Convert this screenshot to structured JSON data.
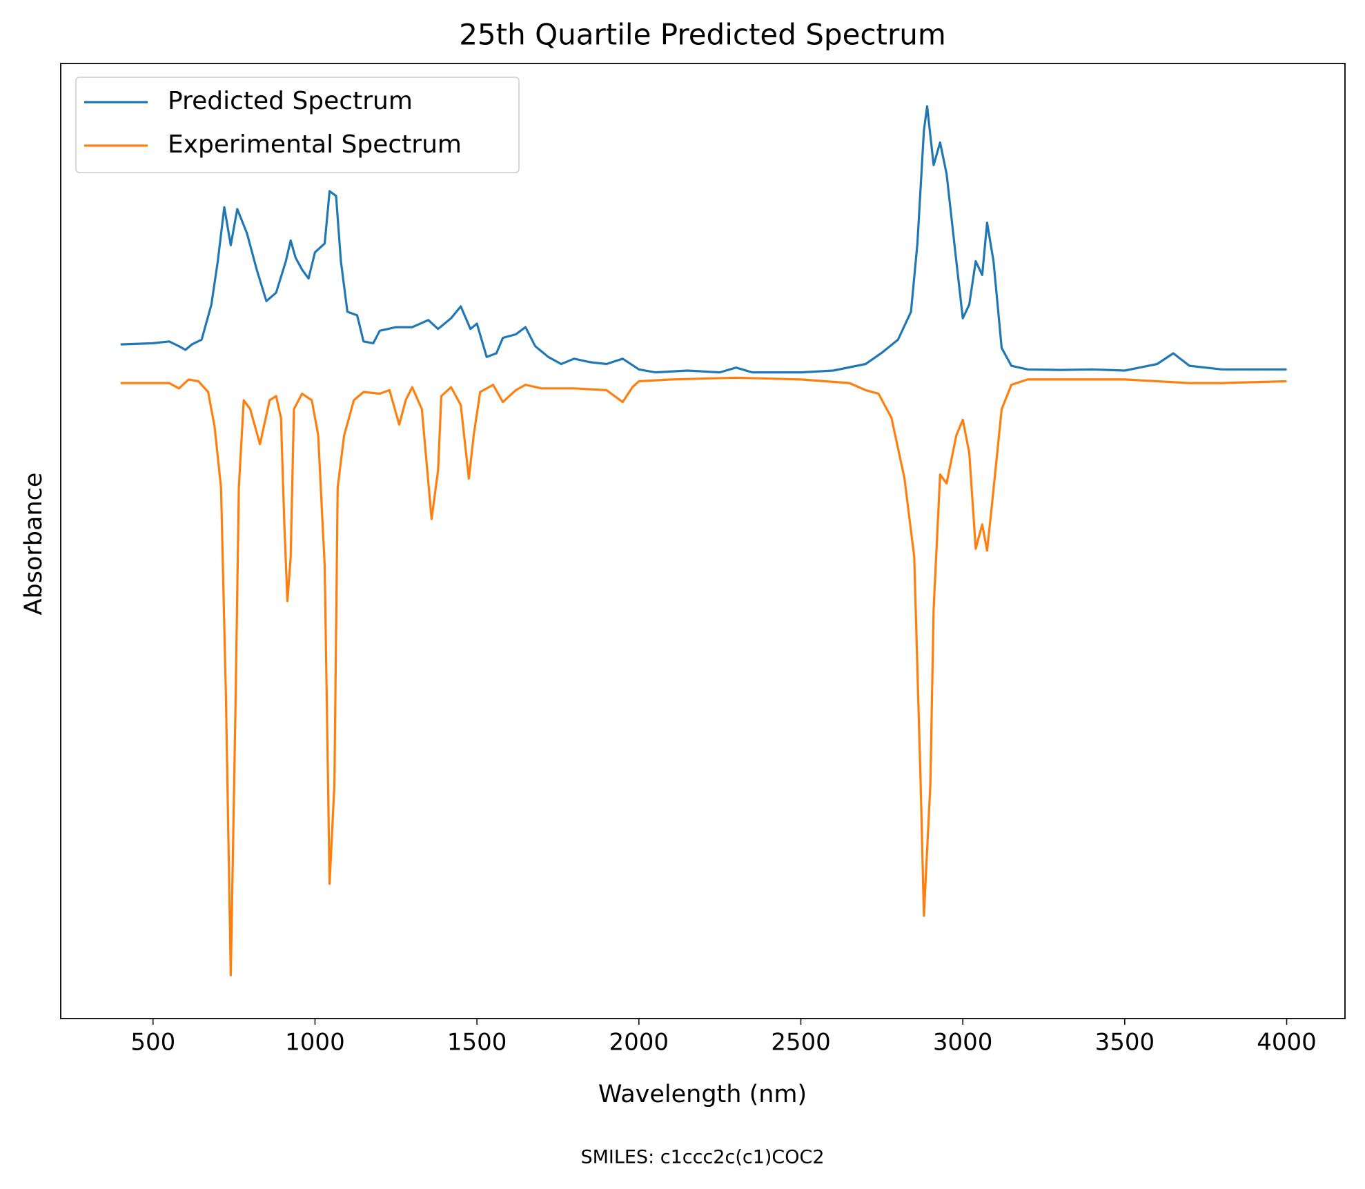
{
  "chart_data": {
    "type": "line",
    "title": "25th Quartile Predicted Spectrum",
    "x_label": "Wavelength (nm)",
    "y_label": "Absorbance",
    "footnote": "SMILES: c1ccc2c(c1)COC2",
    "xlim": [
      215,
      4180
    ],
    "xticks": [
      500,
      1000,
      1500,
      2000,
      2500,
      3000,
      3500,
      4000
    ],
    "ylim": [
      -1.07,
      0.538
    ],
    "grid": false,
    "legend": "upper-left",
    "series": [
      {
        "name": "Predicted Spectrum",
        "color": "#1f77b4",
        "x": [
          400,
          500,
          550,
          580,
          600,
          620,
          650,
          680,
          700,
          720,
          740,
          760,
          790,
          820,
          850,
          880,
          910,
          925,
          940,
          960,
          980,
          1000,
          1030,
          1045,
          1065,
          1080,
          1100,
          1130,
          1150,
          1180,
          1200,
          1250,
          1300,
          1350,
          1380,
          1420,
          1450,
          1480,
          1500,
          1530,
          1560,
          1580,
          1620,
          1650,
          1680,
          1720,
          1760,
          1800,
          1850,
          1900,
          1950,
          2000,
          2050,
          2150,
          2250,
          2300,
          2350,
          2500,
          2600,
          2700,
          2750,
          2800,
          2840,
          2860,
          2880,
          2890,
          2910,
          2930,
          2950,
          2980,
          3000,
          3020,
          3040,
          3060,
          3075,
          3095,
          3120,
          3150,
          3200,
          3300,
          3400,
          3500,
          3600,
          3650,
          3700,
          3800,
          4000
        ],
        "values": [
          0.065,
          0.067,
          0.07,
          0.062,
          0.056,
          0.065,
          0.073,
          0.132,
          0.205,
          0.296,
          0.232,
          0.293,
          0.252,
          0.191,
          0.138,
          0.152,
          0.205,
          0.24,
          0.211,
          0.191,
          0.176,
          0.22,
          0.235,
          0.323,
          0.315,
          0.205,
          0.12,
          0.114,
          0.07,
          0.067,
          0.088,
          0.094,
          0.094,
          0.106,
          0.091,
          0.109,
          0.129,
          0.091,
          0.1,
          0.044,
          0.05,
          0.076,
          0.082,
          0.094,
          0.062,
          0.044,
          0.032,
          0.041,
          0.035,
          0.032,
          0.041,
          0.023,
          0.018,
          0.021,
          0.018,
          0.026,
          0.018,
          0.018,
          0.021,
          0.032,
          0.051,
          0.073,
          0.12,
          0.235,
          0.425,
          0.466,
          0.367,
          0.405,
          0.352,
          0.205,
          0.109,
          0.132,
          0.205,
          0.182,
          0.27,
          0.205,
          0.059,
          0.029,
          0.023,
          0.022,
          0.023,
          0.021,
          0.032,
          0.05,
          0.029,
          0.023,
          0.023
        ]
      },
      {
        "name": "Experimental Spectrum",
        "color": "#ff7f0e",
        "x": [
          400,
          550,
          580,
          610,
          640,
          670,
          690,
          710,
          725,
          740,
          755,
          765,
          780,
          800,
          830,
          860,
          880,
          895,
          905,
          915,
          925,
          935,
          960,
          990,
          1010,
          1030,
          1045,
          1060,
          1070,
          1090,
          1120,
          1150,
          1200,
          1230,
          1260,
          1280,
          1300,
          1330,
          1360,
          1380,
          1390,
          1420,
          1450,
          1475,
          1490,
          1510,
          1550,
          1580,
          1620,
          1650,
          1700,
          1800,
          1900,
          1950,
          1980,
          2000,
          2100,
          2300,
          2500,
          2650,
          2700,
          2740,
          2780,
          2820,
          2850,
          2870,
          2880,
          2900,
          2910,
          2930,
          2950,
          2980,
          3000,
          3020,
          3040,
          3060,
          3075,
          3090,
          3120,
          3150,
          3200,
          3300,
          3500,
          3700,
          3800,
          4000
        ],
        "values": [
          0,
          0,
          -0.009,
          0.006,
          0.003,
          -0.015,
          -0.073,
          -0.176,
          -0.528,
          -0.997,
          -0.528,
          -0.176,
          -0.029,
          -0.044,
          -0.103,
          -0.029,
          -0.022,
          -0.059,
          -0.235,
          -0.367,
          -0.293,
          -0.044,
          -0.018,
          -0.029,
          -0.088,
          -0.308,
          -0.843,
          -0.675,
          -0.176,
          -0.088,
          -0.029,
          -0.015,
          -0.018,
          -0.012,
          -0.07,
          -0.029,
          -0.007,
          -0.044,
          -0.229,
          -0.147,
          -0.022,
          -0.007,
          -0.037,
          -0.161,
          -0.088,
          -0.015,
          -0.003,
          -0.032,
          -0.012,
          -0.003,
          -0.009,
          -0.009,
          -0.012,
          -0.032,
          -0.007,
          0.003,
          0.006,
          0.009,
          0.006,
          0,
          -0.012,
          -0.018,
          -0.059,
          -0.161,
          -0.293,
          -0.675,
          -0.897,
          -0.675,
          -0.381,
          -0.154,
          -0.169,
          -0.088,
          -0.062,
          -0.117,
          -0.279,
          -0.238,
          -0.282,
          -0.205,
          -0.044,
          -0.003,
          0.006,
          0.006,
          0.006,
          0,
          0,
          0.003
        ]
      }
    ]
  }
}
